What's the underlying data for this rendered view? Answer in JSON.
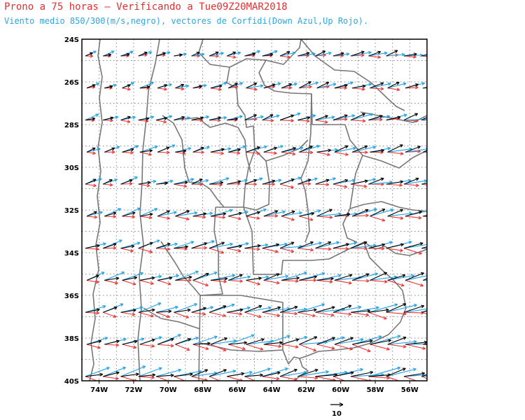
{
  "header": {
    "title": "Prono a 75 horas — Verificando a Tue09Z20MAR2018",
    "subtitle": "Viento medio 850/300(m/s,negro), vectores de Corfidi(Down Azul,Up Rojo)."
  },
  "map": {
    "lon_range": [
      -75,
      -55
    ],
    "lat_range": [
      -40,
      -24
    ],
    "x_ticks": [
      "74W",
      "72W",
      "70W",
      "68W",
      "66W",
      "64W",
      "62W",
      "60W",
      "58W",
      "56W"
    ],
    "y_ticks": [
      "24S",
      "26S",
      "28S",
      "30S",
      "32S",
      "34S",
      "36S",
      "38S",
      "40S"
    ],
    "grid": true,
    "reference_vector_label": "10",
    "colors": {
      "mean_wind": "#000000",
      "corfidi_down": "#1ea0e6",
      "corfidi_up": "#ee3535",
      "boundaries": "#777777",
      "grid": "#888888"
    }
  }
}
